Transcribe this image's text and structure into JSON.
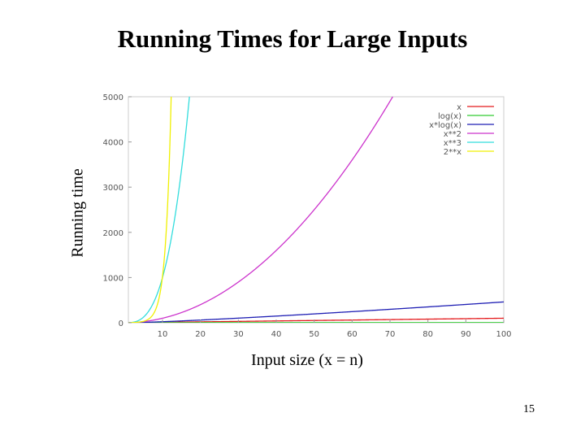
{
  "slide": {
    "title": "Running Times for Large Inputs",
    "page_number": "15"
  },
  "chart_data": {
    "type": "line",
    "xlabel": "Input size (x = n)",
    "ylabel": "Running time",
    "xlim": [
      1,
      100
    ],
    "ylim": [
      0,
      5000
    ],
    "x_ticks": [
      "10",
      "20",
      "30",
      "40",
      "50",
      "60",
      "70",
      "80",
      "90",
      "100"
    ],
    "y_ticks": [
      "0",
      "1000",
      "2000",
      "3000",
      "4000",
      "5000"
    ],
    "grid": false,
    "legend_position": "top-right",
    "series": [
      {
        "name": "x",
        "color": "#e41a1c",
        "expr": "x"
      },
      {
        "name": "log(x)",
        "color": "#33cc33",
        "expr": "log"
      },
      {
        "name": "x*log(x)",
        "color": "#1f1fb4",
        "expr": "xlogx"
      },
      {
        "name": "x**2",
        "color": "#cc33cc",
        "expr": "square"
      },
      {
        "name": "x**3",
        "color": "#33dddd",
        "expr": "cube"
      },
      {
        "name": "2**x",
        "color": "#f0f000",
        "expr": "exp2"
      }
    ]
  }
}
